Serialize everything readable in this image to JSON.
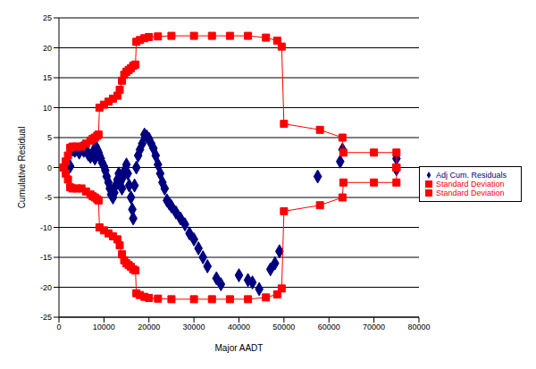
{
  "chart_data": {
    "type": "scatter",
    "x_label": "Major AADT",
    "y_label": "Cumulative Residual",
    "xlim": [
      0,
      80000
    ],
    "xticks": [
      0,
      10000,
      20000,
      30000,
      40000,
      50000,
      60000,
      70000,
      80000
    ],
    "ylim": [
      -25,
      25
    ],
    "yticks": [
      -25,
      -20,
      -15,
      -10,
      -5,
      0,
      5,
      10,
      15,
      20,
      25
    ],
    "grid": true,
    "legend": "right",
    "series": [
      {
        "name": "Adj Cum. Residuals",
        "color": "#00007f",
        "marker": "diamond",
        "type": "scatter",
        "x": [
          1500,
          2500,
          3000,
          3500,
          4000,
          4500,
          5000,
          5500,
          6000,
          6500,
          7000,
          7500,
          8000,
          8200,
          8500,
          8800,
          9000,
          9300,
          9600,
          10000,
          10300,
          10600,
          11000,
          11300,
          11600,
          12000,
          12300,
          12600,
          13000,
          13300,
          13600,
          14000,
          14300,
          14600,
          15000,
          15300,
          15600,
          16000,
          16300,
          16500,
          16800,
          17200,
          17600,
          18000,
          18500,
          19000,
          19500,
          20000,
          20500,
          21000,
          21500,
          22000,
          22500,
          23000,
          23500,
          24000,
          24500,
          25000,
          26000,
          27000,
          28000,
          29000,
          30000,
          31000,
          32000,
          33000,
          35000,
          36000,
          40000,
          42000,
          43000,
          44500,
          47000,
          48000,
          49000,
          57500,
          62500,
          63000,
          75000,
          75000
        ],
        "values": [
          -0.3,
          0.2,
          3,
          2.8,
          3,
          2.5,
          3.2,
          2.8,
          3,
          2.2,
          1.8,
          2.5,
          1.5,
          3.5,
          3,
          2.5,
          2,
          1.5,
          0.8,
          0.2,
          -0.5,
          -1.5,
          -2.5,
          -3.5,
          -4.5,
          -5,
          -4.2,
          -3,
          -2,
          -1,
          -2.5,
          -3.5,
          -1.5,
          -0.5,
          0.5,
          -1,
          -3,
          -5,
          -7,
          -8.5,
          -3,
          0,
          2,
          3,
          4,
          5.5,
          5.2,
          4.8,
          4,
          3.2,
          2,
          0.5,
          -1,
          -2.5,
          -3.5,
          -5.5,
          -6,
          -6.5,
          -7.5,
          -8.5,
          -9.5,
          -11,
          -12,
          -13.5,
          -15,
          -16.5,
          -18.5,
          -19.5,
          -18,
          -18.8,
          -19.2,
          -20.3,
          -17,
          -16,
          -14,
          -1.5,
          1,
          3,
          1.5,
          -0.3
        ]
      },
      {
        "name": "Standard Deviation",
        "color": "#ff0000",
        "marker": "square",
        "type": "line",
        "x": [
          1000,
          1500,
          2000,
          2500,
          3000,
          4000,
          5000,
          6000,
          7000,
          7500,
          8000,
          8500,
          8800,
          9000,
          10000,
          11000,
          12000,
          13000,
          13500,
          14000,
          14500,
          15000,
          15500,
          16000,
          16500,
          17000,
          17200,
          18000,
          19000,
          20000,
          22000,
          25000,
          30000,
          34000,
          38000,
          42000,
          46000,
          48500,
          49500,
          50000,
          58000,
          63000,
          63200,
          70000,
          75000,
          75000
        ],
        "values": [
          0,
          1,
          2,
          3.3,
          3.5,
          3.5,
          3.5,
          4,
          4.5,
          4.8,
          5,
          5.3,
          5.5,
          10,
          10.5,
          11,
          11.5,
          12,
          13,
          14.5,
          15.5,
          16,
          16.3,
          16.6,
          17,
          17.2,
          21,
          21.3,
          21.6,
          21.8,
          21.9,
          22,
          22,
          22,
          22,
          22,
          21.7,
          21.2,
          20.2,
          7.3,
          6.3,
          5,
          2.5,
          2.5,
          2.5,
          0
        ]
      },
      {
        "name": "Standard Deviation",
        "color": "#ff0000",
        "marker": "square",
        "type": "line",
        "x": [
          1000,
          1500,
          2000,
          2500,
          3000,
          4000,
          5000,
          6000,
          7000,
          7500,
          8000,
          8500,
          8800,
          9000,
          10000,
          11000,
          12000,
          13000,
          13500,
          14000,
          14500,
          15000,
          15500,
          16000,
          16500,
          17000,
          17200,
          18000,
          19000,
          20000,
          22000,
          25000,
          30000,
          34000,
          38000,
          42000,
          46000,
          48500,
          49500,
          50000,
          58000,
          63000,
          63200,
          70000,
          75000,
          75000
        ],
        "values": [
          0,
          -1,
          -2,
          -3.3,
          -3.5,
          -3.5,
          -3.5,
          -4,
          -4.5,
          -4.8,
          -5,
          -5.3,
          -5.5,
          -10,
          -10.5,
          -11,
          -11.5,
          -12,
          -13,
          -14.5,
          -15.5,
          -16,
          -16.3,
          -16.6,
          -17,
          -17.2,
          -21,
          -21.3,
          -21.6,
          -21.8,
          -21.9,
          -22,
          -22,
          -22,
          -22,
          -22,
          -21.7,
          -21.2,
          -20.2,
          -7.3,
          -6.3,
          -5,
          -2.5,
          -2.5,
          -2.5,
          0
        ]
      }
    ]
  }
}
